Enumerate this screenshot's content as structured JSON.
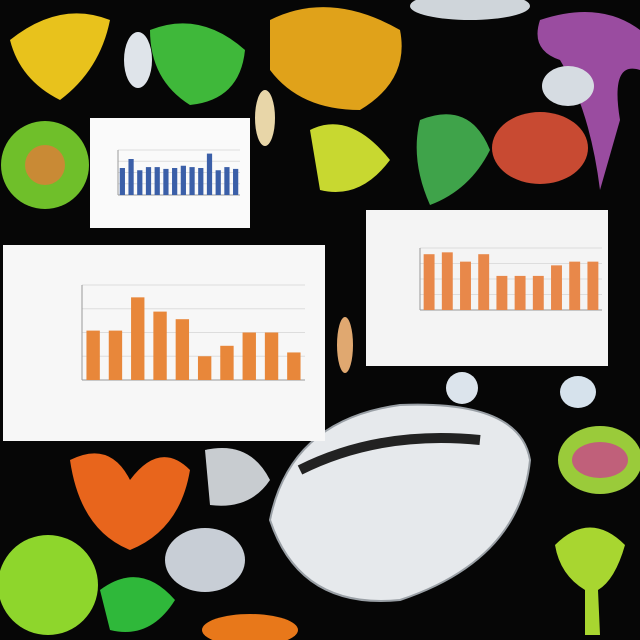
{
  "panels": [
    {
      "type": "bar",
      "color": "#3b5fa8",
      "ylim": [
        0,
        100
      ],
      "values": [
        60,
        80,
        55,
        62,
        62,
        58,
        60,
        65,
        62,
        60,
        92,
        55,
        62,
        58
      ]
    },
    {
      "type": "bar",
      "color": "#e8884a",
      "ylim": [
        0,
        100
      ],
      "values": [
        90,
        93,
        78,
        90,
        55,
        55,
        55,
        72,
        78,
        78
      ]
    },
    {
      "type": "bar",
      "color": "#e8873a",
      "ylim": [
        0,
        100
      ],
      "values": [
        52,
        52,
        87,
        72,
        64,
        25,
        36,
        50,
        50,
        29
      ]
    }
  ]
}
